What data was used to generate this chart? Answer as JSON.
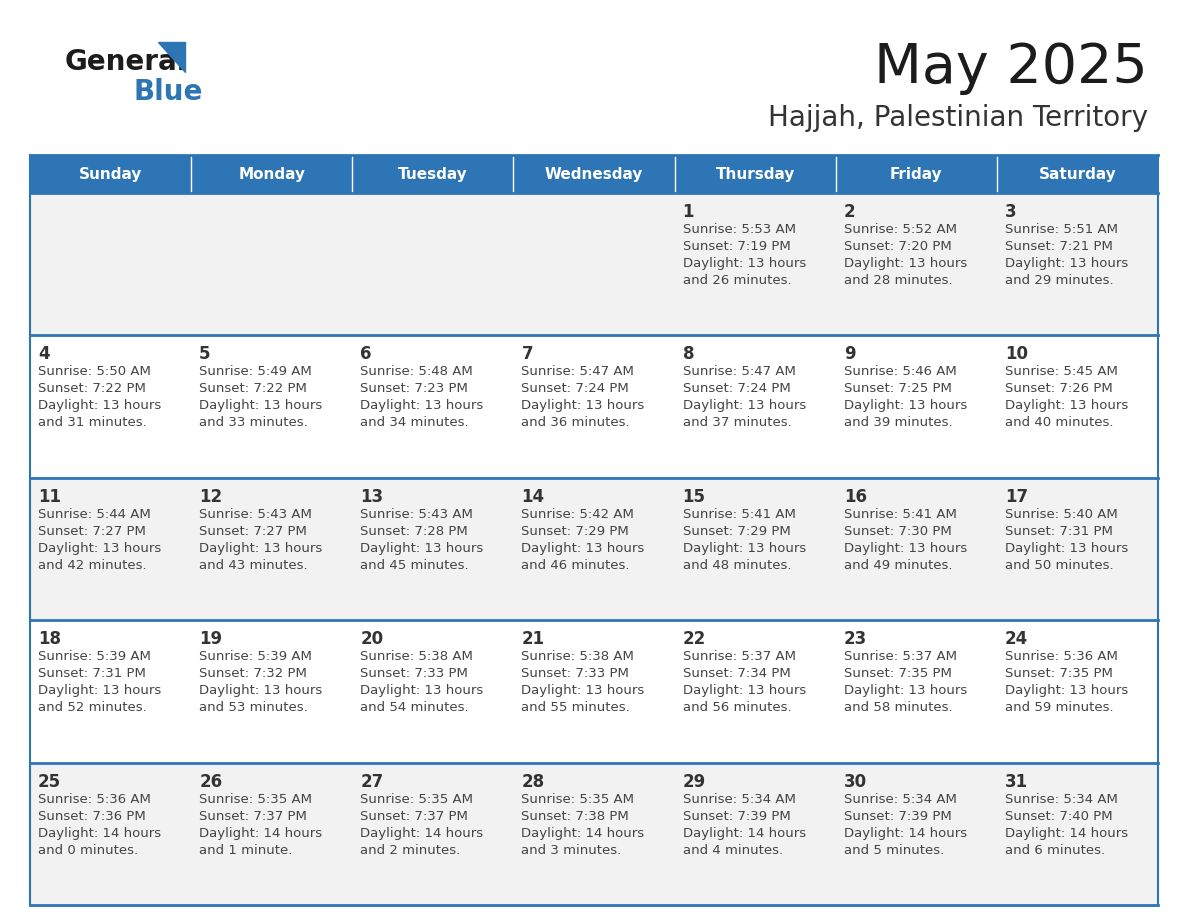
{
  "title": "May 2025",
  "subtitle": "Hajjah, Palestinian Territory",
  "days_of_week": [
    "Sunday",
    "Monday",
    "Tuesday",
    "Wednesday",
    "Thursday",
    "Friday",
    "Saturday"
  ],
  "header_bg": "#2E75B6",
  "header_text": "#FFFFFF",
  "cell_bg_light": "#F2F2F2",
  "cell_bg_white": "#FFFFFF",
  "row_line_color": "#2E75B6",
  "text_color": "#333333",
  "calendar_data": [
    [
      null,
      null,
      null,
      null,
      {
        "day": 1,
        "sunrise": "5:53 AM",
        "sunset": "7:19 PM",
        "daylight": "13 hours",
        "daylight2": "and 26 minutes."
      },
      {
        "day": 2,
        "sunrise": "5:52 AM",
        "sunset": "7:20 PM",
        "daylight": "13 hours",
        "daylight2": "and 28 minutes."
      },
      {
        "day": 3,
        "sunrise": "5:51 AM",
        "sunset": "7:21 PM",
        "daylight": "13 hours",
        "daylight2": "and 29 minutes."
      }
    ],
    [
      {
        "day": 4,
        "sunrise": "5:50 AM",
        "sunset": "7:22 PM",
        "daylight": "13 hours",
        "daylight2": "and 31 minutes."
      },
      {
        "day": 5,
        "sunrise": "5:49 AM",
        "sunset": "7:22 PM",
        "daylight": "13 hours",
        "daylight2": "and 33 minutes."
      },
      {
        "day": 6,
        "sunrise": "5:48 AM",
        "sunset": "7:23 PM",
        "daylight": "13 hours",
        "daylight2": "and 34 minutes."
      },
      {
        "day": 7,
        "sunrise": "5:47 AM",
        "sunset": "7:24 PM",
        "daylight": "13 hours",
        "daylight2": "and 36 minutes."
      },
      {
        "day": 8,
        "sunrise": "5:47 AM",
        "sunset": "7:24 PM",
        "daylight": "13 hours",
        "daylight2": "and 37 minutes."
      },
      {
        "day": 9,
        "sunrise": "5:46 AM",
        "sunset": "7:25 PM",
        "daylight": "13 hours",
        "daylight2": "and 39 minutes."
      },
      {
        "day": 10,
        "sunrise": "5:45 AM",
        "sunset": "7:26 PM",
        "daylight": "13 hours",
        "daylight2": "and 40 minutes."
      }
    ],
    [
      {
        "day": 11,
        "sunrise": "5:44 AM",
        "sunset": "7:27 PM",
        "daylight": "13 hours",
        "daylight2": "and 42 minutes."
      },
      {
        "day": 12,
        "sunrise": "5:43 AM",
        "sunset": "7:27 PM",
        "daylight": "13 hours",
        "daylight2": "and 43 minutes."
      },
      {
        "day": 13,
        "sunrise": "5:43 AM",
        "sunset": "7:28 PM",
        "daylight": "13 hours",
        "daylight2": "and 45 minutes."
      },
      {
        "day": 14,
        "sunrise": "5:42 AM",
        "sunset": "7:29 PM",
        "daylight": "13 hours",
        "daylight2": "and 46 minutes."
      },
      {
        "day": 15,
        "sunrise": "5:41 AM",
        "sunset": "7:29 PM",
        "daylight": "13 hours",
        "daylight2": "and 48 minutes."
      },
      {
        "day": 16,
        "sunrise": "5:41 AM",
        "sunset": "7:30 PM",
        "daylight": "13 hours",
        "daylight2": "and 49 minutes."
      },
      {
        "day": 17,
        "sunrise": "5:40 AM",
        "sunset": "7:31 PM",
        "daylight": "13 hours",
        "daylight2": "and 50 minutes."
      }
    ],
    [
      {
        "day": 18,
        "sunrise": "5:39 AM",
        "sunset": "7:31 PM",
        "daylight": "13 hours",
        "daylight2": "and 52 minutes."
      },
      {
        "day": 19,
        "sunrise": "5:39 AM",
        "sunset": "7:32 PM",
        "daylight": "13 hours",
        "daylight2": "and 53 minutes."
      },
      {
        "day": 20,
        "sunrise": "5:38 AM",
        "sunset": "7:33 PM",
        "daylight": "13 hours",
        "daylight2": "and 54 minutes."
      },
      {
        "day": 21,
        "sunrise": "5:38 AM",
        "sunset": "7:33 PM",
        "daylight": "13 hours",
        "daylight2": "and 55 minutes."
      },
      {
        "day": 22,
        "sunrise": "5:37 AM",
        "sunset": "7:34 PM",
        "daylight": "13 hours",
        "daylight2": "and 56 minutes."
      },
      {
        "day": 23,
        "sunrise": "5:37 AM",
        "sunset": "7:35 PM",
        "daylight": "13 hours",
        "daylight2": "and 58 minutes."
      },
      {
        "day": 24,
        "sunrise": "5:36 AM",
        "sunset": "7:35 PM",
        "daylight": "13 hours",
        "daylight2": "and 59 minutes."
      }
    ],
    [
      {
        "day": 25,
        "sunrise": "5:36 AM",
        "sunset": "7:36 PM",
        "daylight": "14 hours",
        "daylight2": "and 0 minutes."
      },
      {
        "day": 26,
        "sunrise": "5:35 AM",
        "sunset": "7:37 PM",
        "daylight": "14 hours",
        "daylight2": "and 1 minute."
      },
      {
        "day": 27,
        "sunrise": "5:35 AM",
        "sunset": "7:37 PM",
        "daylight": "14 hours",
        "daylight2": "and 2 minutes."
      },
      {
        "day": 28,
        "sunrise": "5:35 AM",
        "sunset": "7:38 PM",
        "daylight": "14 hours",
        "daylight2": "and 3 minutes."
      },
      {
        "day": 29,
        "sunrise": "5:34 AM",
        "sunset": "7:39 PM",
        "daylight": "14 hours",
        "daylight2": "and 4 minutes."
      },
      {
        "day": 30,
        "sunrise": "5:34 AM",
        "sunset": "7:39 PM",
        "daylight": "14 hours",
        "daylight2": "and 5 minutes."
      },
      {
        "day": 31,
        "sunrise": "5:34 AM",
        "sunset": "7:40 PM",
        "daylight": "14 hours",
        "daylight2": "and 6 minutes."
      }
    ]
  ]
}
